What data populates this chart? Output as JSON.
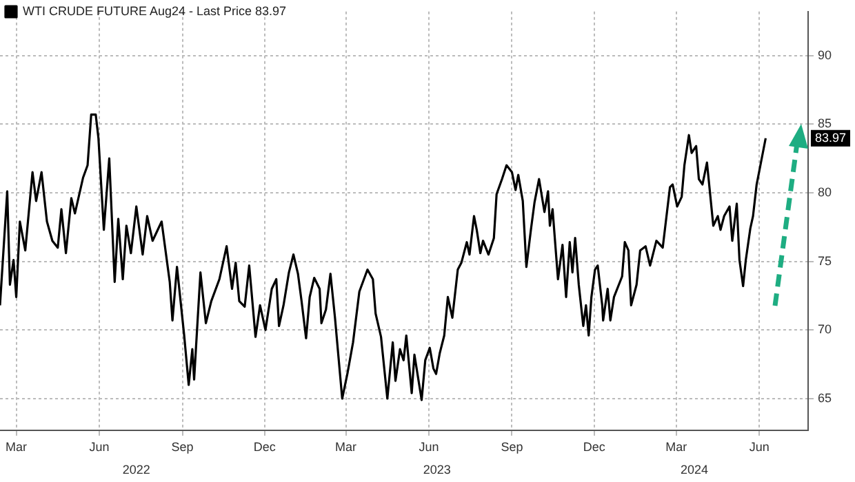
{
  "chart_data": {
    "type": "line",
    "legend": "top left",
    "grid": true,
    "marker": "none",
    "line_style": "solid",
    "x": [
      "2022-02-11",
      "2022-02-19",
      "2022-02-22",
      "2022-02-26",
      "2022-03-01",
      "2022-03-05",
      "2022-03-11",
      "2022-03-19",
      "2022-03-23",
      "2022-03-29",
      "2022-04-04",
      "2022-04-10",
      "2022-04-16",
      "2022-04-20",
      "2022-04-25",
      "2022-05-01",
      "2022-05-05",
      "2022-05-14",
      "2022-05-19",
      "2022-05-23",
      "2022-05-28",
      "2022-05-31",
      "2022-06-06",
      "2022-06-12",
      "2022-06-18",
      "2022-06-22",
      "2022-06-27",
      "2022-07-01",
      "2022-07-06",
      "2022-07-12",
      "2022-07-19",
      "2022-07-24",
      "2022-07-30",
      "2022-08-09",
      "2022-08-18",
      "2022-08-21",
      "2022-08-26",
      "2022-09-03",
      "2022-09-08",
      "2022-09-12",
      "2022-09-14",
      "2022-09-21",
      "2022-09-27",
      "2022-10-03",
      "2022-10-12",
      "2022-10-20",
      "2022-10-26",
      "2022-10-30",
      "2022-11-03",
      "2022-11-09",
      "2022-11-14",
      "2022-11-21",
      "2022-11-26",
      "2022-12-02",
      "2022-12-09",
      "2022-12-14",
      "2022-12-17",
      "2022-12-22",
      "2022-12-28",
      "2023-01-02",
      "2023-01-07",
      "2023-01-11",
      "2023-01-16",
      "2023-01-20",
      "2023-01-25",
      "2023-01-31",
      "2023-02-02",
      "2023-02-07",
      "2023-02-12",
      "2023-02-17",
      "2023-02-25",
      "2023-03-03",
      "2023-03-09",
      "2023-03-16",
      "2023-03-25",
      "2023-03-31",
      "2023-04-03",
      "2023-04-09",
      "2023-04-16",
      "2023-04-22",
      "2023-04-25",
      "2023-04-30",
      "2023-05-04",
      "2023-05-07",
      "2023-05-13",
      "2023-05-16",
      "2023-05-24",
      "2023-05-28",
      "2023-06-02",
      "2023-06-06",
      "2023-06-09",
      "2023-06-13",
      "2023-06-18",
      "2023-06-22",
      "2023-06-27",
      "2023-07-03",
      "2023-07-07",
      "2023-07-13",
      "2023-07-16",
      "2023-07-21",
      "2023-07-24",
      "2023-07-28",
      "2023-07-31",
      "2023-08-06",
      "2023-08-12",
      "2023-08-15",
      "2023-08-21",
      "2023-08-26",
      "2023-09-01",
      "2023-09-05",
      "2023-09-08",
      "2023-09-13",
      "2023-09-17",
      "2023-09-22",
      "2023-09-26",
      "2023-10-01",
      "2023-10-07",
      "2023-10-11",
      "2023-10-13",
      "2023-10-16",
      "2023-10-22",
      "2023-10-27",
      "2023-10-31",
      "2023-11-04",
      "2023-11-07",
      "2023-11-10",
      "2023-11-14",
      "2023-11-19",
      "2023-11-22",
      "2023-11-25",
      "2023-11-28",
      "2023-12-02",
      "2023-12-05",
      "2023-12-10",
      "2023-12-11",
      "2023-12-16",
      "2023-12-19",
      "2023-12-23",
      "2024-01-01",
      "2024-01-04",
      "2024-01-08",
      "2024-01-11",
      "2024-01-17",
      "2024-01-21",
      "2024-01-27",
      "2024-02-01",
      "2024-02-08",
      "2024-02-15",
      "2024-02-23",
      "2024-02-26",
      "2024-03-02",
      "2024-03-07",
      "2024-03-10",
      "2024-03-15",
      "2024-03-18",
      "2024-03-23",
      "2024-03-26",
      "2024-03-30",
      "2024-04-04",
      "2024-04-11",
      "2024-04-16",
      "2024-04-19",
      "2024-04-23",
      "2024-04-29",
      "2024-05-02",
      "2024-05-07",
      "2024-05-10",
      "2024-05-14",
      "2024-05-17",
      "2024-05-22",
      "2024-05-25",
      "2024-05-29",
      "2024-06-01",
      "2024-06-08"
    ],
    "series": [
      {
        "name": "WTI CRUDE FUTURE Aug24 - Last Price 83.97",
        "color": "#000000",
        "values": [
          71.8,
          80.1,
          73.3,
          75.1,
          72.4,
          77.9,
          75.8,
          81.5,
          79.4,
          81.5,
          77.9,
          76.5,
          76.0,
          78.8,
          75.6,
          79.6,
          78.5,
          81.1,
          82.0,
          85.7,
          85.7,
          84.0,
          77.3,
          82.5,
          73.5,
          78.1,
          73.7,
          77.6,
          75.6,
          79.0,
          75.5,
          78.3,
          76.5,
          77.9,
          73.5,
          70.7,
          74.6,
          69.6,
          66.0,
          68.6,
          66.4,
          74.2,
          70.5,
          72.1,
          73.7,
          76.1,
          73.0,
          74.9,
          72.1,
          71.7,
          74.7,
          69.5,
          71.8,
          70.0,
          73.0,
          73.7,
          70.3,
          71.8,
          74.2,
          75.5,
          74.1,
          72.1,
          69.4,
          72.4,
          73.8,
          73.0,
          70.5,
          71.5,
          74.1,
          70.9,
          65.0,
          66.9,
          69.1,
          72.8,
          74.4,
          73.7,
          71.2,
          69.5,
          65.0,
          69.1,
          66.3,
          68.6,
          67.8,
          69.6,
          65.4,
          68.2,
          64.9,
          67.8,
          68.7,
          67.2,
          66.8,
          68.3,
          69.6,
          72.4,
          70.9,
          74.4,
          74.9,
          76.4,
          75.5,
          78.3,
          77.3,
          75.6,
          76.5,
          75.5,
          76.7,
          79.9,
          81.0,
          82.0,
          81.5,
          80.2,
          81.3,
          79.4,
          74.6,
          77.3,
          79.3,
          81.0,
          78.6,
          80.1,
          77.6,
          78.8,
          73.7,
          76.2,
          72.4,
          76.4,
          74.2,
          76.7,
          73.3,
          70.3,
          71.8,
          69.6,
          72.4,
          74.4,
          74.7,
          71.8,
          70.7,
          73.0,
          70.7,
          72.4,
          73.9,
          76.4,
          75.8,
          71.8,
          73.3,
          75.8,
          76.1,
          74.7,
          76.5,
          76.0,
          80.4,
          80.6,
          79.0,
          79.7,
          82.0,
          84.2,
          82.9,
          83.4,
          81.0,
          80.6,
          82.2,
          77.6,
          78.3,
          77.3,
          78.3,
          79.0,
          76.5,
          79.2,
          75.1,
          73.2,
          75.1,
          77.4,
          78.3,
          80.6,
          81.6,
          83.97
        ]
      }
    ],
    "xlim": [
      "2022-02-11",
      "2024-07-25"
    ],
    "xticks": [
      {
        "value": "2022-03-01",
        "label": "Mar"
      },
      {
        "value": "2022-06-01",
        "label": "Jun"
      },
      {
        "value": "2022-09-01",
        "label": "Sep"
      },
      {
        "value": "2022-12-01",
        "label": "Dec"
      },
      {
        "value": "2023-03-01",
        "label": "Mar"
      },
      {
        "value": "2023-06-01",
        "label": "Jun"
      },
      {
        "value": "2023-09-01",
        "label": "Sep"
      },
      {
        "value": "2023-12-01",
        "label": "Dec"
      },
      {
        "value": "2024-03-01",
        "label": "Mar"
      },
      {
        "value": "2024-06-01",
        "label": "Jun"
      }
    ],
    "x2lim": [
      "2022-02-11",
      "2024-07-25"
    ],
    "x2ticks": [
      {
        "value": "2022-07-12",
        "label": "2022"
      },
      {
        "value": "2023-06-10",
        "label": "2023"
      },
      {
        "value": "2024-03-21",
        "label": "2024"
      }
    ],
    "ylim": [
      62.7,
      93.2
    ],
    "yticks": [
      65,
      70,
      75,
      80,
      85,
      90
    ],
    "annotations": [
      "83.97"
    ]
  }
}
